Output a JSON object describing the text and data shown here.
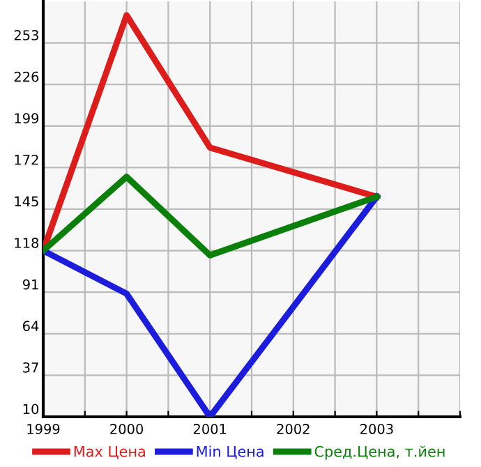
{
  "chart_data": {
    "type": "line",
    "x": [
      1999,
      2000,
      2001,
      2003
    ],
    "series": [
      {
        "name": "Max Цена",
        "color": "#dd1c1c",
        "values": [
          118,
          271,
          185,
          153
        ]
      },
      {
        "name": "Min Цена",
        "color": "#1c1cdd",
        "values": [
          118,
          90,
          10,
          153
        ]
      },
      {
        "name": "Сред.Цена, т.йен",
        "color": "#0a800a",
        "values": [
          118,
          166,
          115,
          153
        ]
      }
    ],
    "xlim": [
      1999,
      2004
    ],
    "xticks": [
      1999,
      {
        "value": 1999.5,
        "label": null
      },
      2000,
      {
        "value": 2000.5,
        "label": null
      },
      2001,
      {
        "value": 2001.5,
        "label": null
      },
      2002,
      {
        "value": 2002.5,
        "label": null
      },
      2003,
      {
        "value": 2003.5,
        "label": null
      },
      {
        "value": 2004,
        "label": null
      }
    ],
    "ylim": [
      10,
      280
    ],
    "yticks": [
      10,
      37,
      64,
      91,
      118,
      145,
      172,
      199,
      226,
      253
    ],
    "grid": true,
    "legend": "bottom",
    "marker": "none",
    "line_style": "solid"
  }
}
